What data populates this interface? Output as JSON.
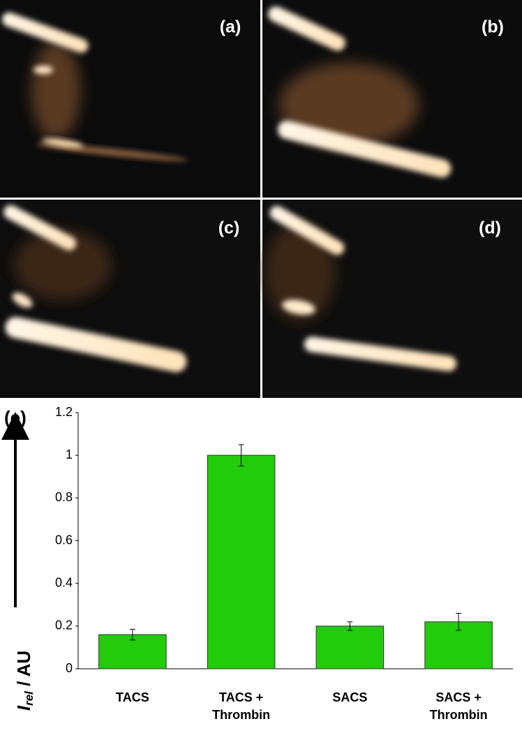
{
  "panels": [
    "(a)",
    "(b)",
    "(c)",
    "(d)"
  ],
  "chart_data": {
    "type": "bar",
    "panel_label": "(e)",
    "ylabel_parts": [
      "I",
      "rel",
      " / AU"
    ],
    "categories": [
      [
        "TACS"
      ],
      [
        "TACS +",
        "Thrombin"
      ],
      [
        "SACS"
      ],
      [
        "SACS +",
        "Thrombin"
      ]
    ],
    "values": [
      0.16,
      1.0,
      0.2,
      0.22
    ],
    "errors": [
      0.025,
      0.05,
      0.02,
      0.04
    ],
    "color": "#22cc0a",
    "ylim": [
      0,
      1.2
    ],
    "yticks": [
      0,
      0.2,
      0.4,
      0.6,
      0.8,
      1,
      1.2
    ]
  }
}
